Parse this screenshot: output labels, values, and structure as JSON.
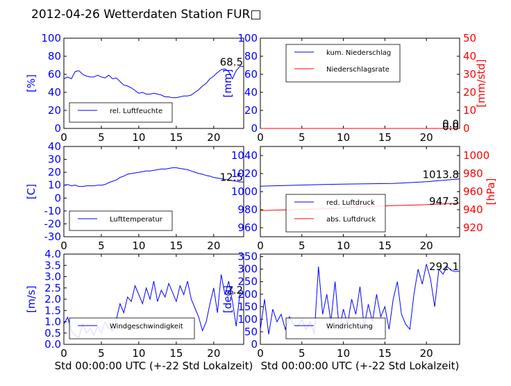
{
  "title": "2012-04-26 Wetterdaten Station FUR□",
  "colors": {
    "left": "#0000ff",
    "right": "#ff0000",
    "axis": "#000000"
  },
  "chart_data": [
    {
      "type": "line",
      "ylabel": "[%]",
      "xlim": [
        0,
        24
      ],
      "ylim": [
        0,
        100
      ],
      "xticks": [
        0,
        5,
        10,
        15,
        20
      ],
      "yticks": [
        0,
        20,
        40,
        60,
        80,
        100
      ],
      "annotation": "68.5",
      "legend": [
        "rel. Luftfeuchte"
      ],
      "series": [
        {
          "name": "rel. Luftfeuchte",
          "color": "#0000ff",
          "x": [
            0,
            0.5,
            1,
            1.5,
            2,
            2.5,
            3,
            3.5,
            4,
            4.5,
            5,
            5.5,
            6,
            6.5,
            7,
            7.5,
            8,
            8.5,
            9,
            9.5,
            10,
            10.5,
            11,
            11.5,
            12,
            12.5,
            13,
            13.5,
            14,
            14.5,
            15,
            15.5,
            16,
            16.5,
            17,
            17.5,
            18,
            18.5,
            19,
            19.5,
            20,
            20.5,
            21,
            21.5,
            22,
            22.5,
            23,
            23.5,
            24
          ],
          "y": [
            55,
            57,
            55,
            63,
            64,
            60,
            58,
            57,
            57,
            59,
            57,
            56,
            59,
            55,
            56,
            52,
            48,
            47,
            45,
            42,
            39,
            40,
            38,
            38,
            39,
            38,
            37,
            35,
            35,
            34,
            34,
            35,
            36,
            36,
            37,
            40,
            43,
            47,
            50,
            55,
            58,
            62,
            65,
            66,
            63,
            55,
            64,
            69,
            68.5
          ]
        }
      ]
    },
    {
      "type": "line",
      "ylabel": "[mm]",
      "y2label": "[mm/std]",
      "xlim": [
        0,
        24
      ],
      "ylim": [
        0,
        100
      ],
      "y2lim": [
        0,
        50
      ],
      "xticks": [
        0,
        5,
        10,
        15,
        20
      ],
      "yticks": [
        0,
        20,
        40,
        60,
        80,
        100
      ],
      "y2ticks": [
        0,
        10,
        20,
        30,
        40,
        50
      ],
      "annotation": "0.0",
      "annotation2": "0.0",
      "legend": [
        "kum. Niederschlag",
        "Niederschlagsrate"
      ],
      "series": [
        {
          "name": "kum. Niederschlag",
          "color": "#0000ff",
          "x": [
            0,
            24
          ],
          "y": [
            0,
            0
          ]
        },
        {
          "name": "Niederschlagsrate",
          "color": "#ff0000",
          "axis": "right",
          "x": [
            0,
            24
          ],
          "y": [
            0,
            0
          ]
        }
      ]
    },
    {
      "type": "line",
      "ylabel": "[C]",
      "xlim": [
        0,
        24
      ],
      "ylim": [
        -30,
        40
      ],
      "xticks": [
        0,
        5,
        10,
        15,
        20
      ],
      "yticks": [
        -30,
        -20,
        -10,
        0,
        10,
        20,
        30,
        40
      ],
      "annotation": "12.5",
      "legend": [
        "Lufttemperatur"
      ],
      "series": [
        {
          "name": "Lufttemperatur",
          "color": "#0000ff",
          "x": [
            0,
            0.5,
            1,
            1.5,
            2,
            2.5,
            3,
            3.5,
            4,
            4.5,
            5,
            5.5,
            6,
            6.5,
            7,
            7.5,
            8,
            8.5,
            9,
            9.5,
            10,
            10.5,
            11,
            11.5,
            12,
            12.5,
            13,
            13.5,
            14,
            14.5,
            15,
            15.5,
            16,
            16.5,
            17,
            17.5,
            18,
            18.5,
            19,
            19.5,
            20,
            20.5,
            21,
            21.5,
            22,
            22.5,
            23,
            23.5,
            24
          ],
          "y": [
            10,
            10.5,
            9.5,
            10,
            9,
            9,
            9.5,
            9.5,
            9.5,
            10,
            10,
            10.5,
            12,
            13,
            14,
            16,
            17,
            18.5,
            19,
            19.5,
            20,
            20.5,
            21,
            21,
            21.5,
            22,
            22.5,
            22.5,
            23,
            23.5,
            23.5,
            23,
            22.5,
            22,
            21,
            20,
            19,
            18.5,
            17.5,
            17,
            16,
            15.5,
            15,
            14.5,
            14,
            13.5,
            13,
            12.5,
            12.5
          ]
        }
      ]
    },
    {
      "type": "line",
      "y2label": "[hPa]",
      "xlim": [
        0,
        24
      ],
      "ylim": [
        950,
        1050
      ],
      "y2lim": [
        910,
        1010
      ],
      "xticks": [
        0,
        5,
        10,
        15,
        20
      ],
      "yticks": [
        960,
        980,
        1000,
        1020,
        1040
      ],
      "y2ticks": [
        920,
        940,
        960,
        980,
        1000
      ],
      "annotation": "1013.8",
      "annotation2": "947.3",
      "legend": [
        "red. Luftdruck",
        "abs. Luftdruck"
      ],
      "series": [
        {
          "name": "red. Luftdruck",
          "color": "#0000ff",
          "x": [
            0,
            4,
            8,
            12,
            16,
            20,
            24
          ],
          "y": [
            1006,
            1007,
            1008,
            1008.5,
            1009,
            1011,
            1014
          ]
        },
        {
          "name": "abs. Luftdruck",
          "color": "#ff0000",
          "axis": "right",
          "x": [
            0,
            4,
            8,
            12,
            16,
            20,
            24
          ],
          "y": [
            939,
            940,
            941,
            943,
            944.5,
            945.5,
            947.3
          ]
        }
      ]
    },
    {
      "type": "line",
      "ylabel": "[m/s]",
      "xlabel": "Std 00:00:00 UTC (+-22 Std Lokalzeit)",
      "xlim": [
        0,
        24
      ],
      "ylim": [
        0,
        4
      ],
      "xticks": [
        0,
        5,
        10,
        15,
        20
      ],
      "yticks": [
        0.0,
        0.5,
        1.0,
        1.5,
        2.0,
        2.5,
        3.0,
        3.5,
        4.0
      ],
      "annotation": "2.2",
      "legend": [
        "Windgeschwindigkeit"
      ],
      "series": [
        {
          "name": "Windgeschwindigkeit",
          "color": "#0000ff",
          "x": [
            0,
            0.5,
            1,
            1.5,
            2,
            2.5,
            3,
            3.5,
            4,
            4.5,
            5,
            5.5,
            6,
            6.5,
            7,
            7.5,
            8,
            8.5,
            9,
            9.5,
            10,
            10.5,
            11,
            11.5,
            12,
            12.5,
            13,
            13.5,
            14,
            14.5,
            15,
            15.5,
            16,
            16.5,
            17,
            17.5,
            18,
            18.5,
            19,
            19.5,
            20,
            20.5,
            21,
            21.5,
            22,
            22.5,
            23,
            23.5,
            24
          ],
          "y": [
            0.9,
            1.2,
            0.6,
            0.4,
            0.3,
            0.9,
            0.5,
            0.7,
            0.4,
            0.8,
            0.5,
            1.0,
            0.7,
            0.6,
            1.1,
            1.8,
            1.4,
            2.1,
            1.9,
            2.6,
            2.2,
            1.8,
            2.5,
            2.0,
            2.8,
            1.9,
            2.4,
            2.1,
            2.7,
            2.3,
            1.9,
            2.6,
            2.2,
            2.8,
            2.0,
            1.6,
            1.2,
            0.6,
            1.0,
            1.8,
            2.5,
            1.4,
            3.1,
            2.2,
            2.8,
            1.9,
            0.8,
            2.3,
            2.2
          ]
        }
      ]
    },
    {
      "type": "line",
      "ylabel": "[deg]",
      "xlabel": "Std 00:00:00 UTC (+-22 Std Lokalzeit)",
      "xlim": [
        0,
        24
      ],
      "ylim": [
        0,
        360
      ],
      "xticks": [
        0,
        5,
        10,
        15,
        20
      ],
      "yticks": [
        0,
        50,
        100,
        150,
        200,
        250,
        300,
        350
      ],
      "annotation": "292.1",
      "legend": [
        "Windrichtung"
      ],
      "series": [
        {
          "name": "Windrichtung",
          "color": "#0000ff",
          "x": [
            0,
            0.5,
            1,
            1.5,
            2,
            2.5,
            3,
            3.5,
            4,
            4.5,
            5,
            5.5,
            6,
            6.5,
            7,
            7.5,
            8,
            8.5,
            9,
            9.5,
            10,
            10.5,
            11,
            11.5,
            12,
            12.5,
            13,
            13.5,
            14,
            14.5,
            15,
            15.5,
            16,
            16.5,
            17,
            17.5,
            18,
            18.5,
            19,
            19.5,
            20,
            20.5,
            21,
            21.5,
            22,
            22.5,
            23,
            23.5,
            24
          ],
          "y": [
            60,
            180,
            40,
            140,
            90,
            120,
            60,
            110,
            80,
            70,
            100,
            60,
            90,
            40,
            310,
            120,
            200,
            90,
            250,
            60,
            140,
            80,
            180,
            120,
            230,
            70,
            160,
            90,
            200,
            110,
            150,
            60,
            180,
            250,
            120,
            80,
            60,
            200,
            300,
            240,
            320,
            260,
            150,
            300,
            280,
            310,
            295,
            290,
            292
          ]
        }
      ]
    }
  ]
}
